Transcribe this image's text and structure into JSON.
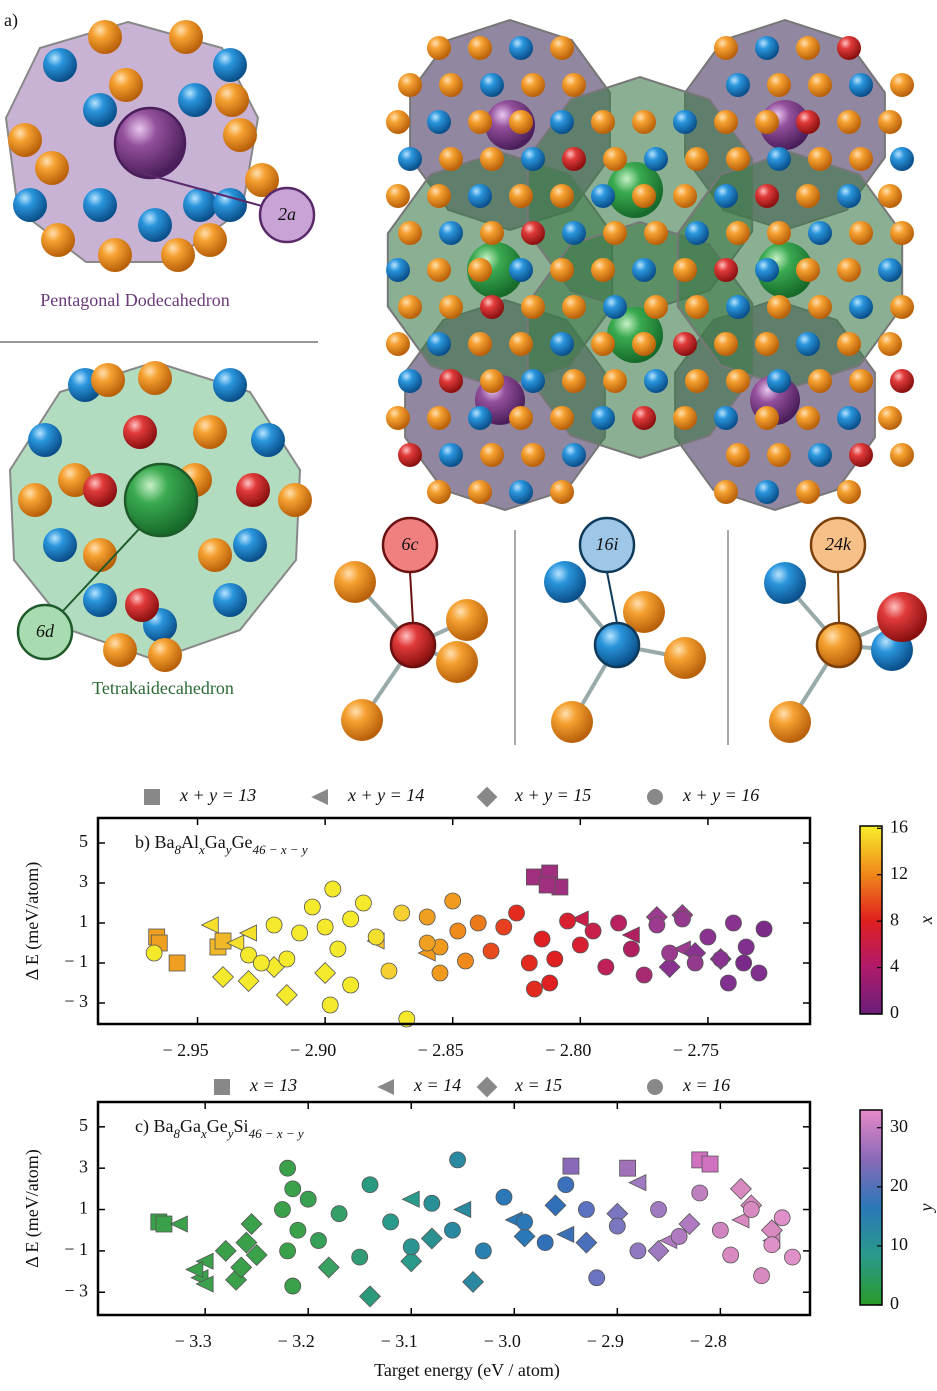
{
  "figure": {
    "panel_label": "a)",
    "dodecahedron": {
      "name": "Pentagonal Dodecahedron",
      "site": "2a"
    },
    "tetrakaidecahedron": {
      "name": "Tetrakaidecahedron",
      "site": "6d"
    },
    "sites": [
      "6c",
      "16i",
      "24k"
    ]
  },
  "chart_data": [
    {
      "type": "scatter",
      "title_parts": [
        "b) Ba",
        "8",
        "Al",
        "x",
        "Ga",
        "y",
        "Ge",
        "46 − x − y"
      ],
      "ylabel": "Δ E (meV/atom)",
      "xlim": [
        -2.989,
        -2.71
      ],
      "ylim": [
        -4.05,
        6.25
      ],
      "xticks": [
        {
          "value": -2.95,
          "label": "− 2.95"
        },
        {
          "value": -2.9,
          "label": "− 2.90"
        },
        {
          "value": -2.85,
          "label": "− 2.85"
        },
        {
          "value": -2.8,
          "label": "− 2.80"
        },
        {
          "value": -2.75,
          "label": "− 2.75"
        }
      ],
      "yticks": [
        5,
        3,
        1,
        {
          "value": -1,
          "label": "− 1"
        },
        {
          "value": -3,
          "label": "− 3"
        }
      ],
      "series": [
        {
          "name": "x + y = 13",
          "marker": "square",
          "x": [
            -2.966,
            -2.965,
            -2.958,
            -2.942,
            -2.94,
            -2.818,
            -2.812,
            -2.808,
            -2.813
          ],
          "values": [
            0.3,
            0.0,
            -1.0,
            -0.2,
            0.1,
            3.3,
            3.5,
            2.8,
            2.9
          ],
          "colors": [
            "#f0a020",
            "#f0a020",
            "#f0a020",
            "#f0b828",
            "#f0b828",
            "#a0307f",
            "#a0307f",
            "#a0307f",
            "#a0307f"
          ]
        },
        {
          "name": "x + y = 14",
          "marker": "triangle-left",
          "x": [
            -2.945,
            -2.935,
            -2.93,
            -2.88,
            -2.86,
            -2.8,
            -2.78,
            -2.76
          ],
          "values": [
            0.9,
            0.0,
            0.5,
            0.1,
            -0.5,
            1.2,
            0.4,
            -0.3
          ],
          "colors": [
            "#f5e02c",
            "#f5e02c",
            "#f5e02c",
            "#f5c030",
            "#f09a1e",
            "#c8204a",
            "#b02060",
            "#9b3a8e"
          ]
        },
        {
          "name": "x + y = 15",
          "marker": "diamond",
          "x": [
            -2.94,
            -2.93,
            -2.915,
            -2.92,
            -2.9,
            -2.77,
            -2.76,
            -2.755,
            -2.765,
            -2.745
          ],
          "values": [
            -1.7,
            -1.9,
            -2.6,
            -1.2,
            -1.5,
            1.3,
            1.4,
            -0.5,
            -1.2,
            -0.8
          ],
          "colors": [
            "#f5e92c",
            "#f5e92c",
            "#f5e92c",
            "#f5e92c",
            "#f5e92c",
            "#9b3a8e",
            "#9b3a8e",
            "#8a3290",
            "#8a3290",
            "#8a3290"
          ]
        },
        {
          "name": "x + y = 16",
          "marker": "circle",
          "x": [
            -2.967,
            -2.93,
            -2.925,
            -2.91,
            -2.905,
            -2.9,
            -2.897,
            -2.895,
            -2.89,
            -2.885,
            -2.89,
            -2.898,
            -2.88,
            -2.875,
            -2.87,
            -2.868,
            -2.915,
            -2.92,
            -2.86,
            -2.855,
            -2.85,
            -2.848,
            -2.845,
            -2.84,
            -2.855,
            -2.86,
            -2.835,
            -2.83,
            -2.825,
            -2.82,
            -2.818,
            -2.815,
            -2.81,
            -2.805,
            -2.8,
            -2.812,
            -2.795,
            -2.79,
            -2.785,
            -2.78,
            -2.775,
            -2.77,
            -2.765,
            -2.76,
            -2.755,
            -2.75,
            -2.745,
            -2.74,
            -2.735,
            -2.73,
            -2.742,
            -2.728,
            -2.736
          ],
          "values": [
            -0.5,
            -0.6,
            -1.0,
            0.5,
            1.8,
            0.8,
            2.7,
            -0.3,
            1.2,
            2.0,
            -2.1,
            -3.1,
            0.3,
            -1.4,
            1.5,
            -3.8,
            -0.8,
            0.9,
            1.3,
            -0.2,
            2.1,
            0.6,
            -0.9,
            1.0,
            -1.5,
            0.0,
            -0.4,
            0.8,
            1.5,
            -1.0,
            -2.3,
            0.2,
            -0.8,
            1.1,
            -0.1,
            -2.0,
            0.6,
            -1.2,
            1.0,
            -0.3,
            -1.6,
            0.9,
            -0.5,
            1.2,
            -1.0,
            0.3,
            -0.8,
            1.0,
            -0.2,
            -1.5,
            -2.0,
            0.7,
            -1.0
          ],
          "colors": [
            "#f5e92c",
            "#f5e92c",
            "#f5e92c",
            "#f5e92c",
            "#f5e92c",
            "#f5e92c",
            "#f5e92c",
            "#f5e92c",
            "#f5e92c",
            "#f5e92c",
            "#f5e92c",
            "#f5e92c",
            "#f5e030",
            "#f5d030",
            "#f5d030",
            "#f5e92c",
            "#f5e92c",
            "#f5e92c",
            "#f0a020",
            "#f09a1e",
            "#f09a1e",
            "#f08a1a",
            "#f08a1a",
            "#ec7a1a",
            "#f09a1e",
            "#f0a020",
            "#e84a1e",
            "#e6401e",
            "#e32a1f",
            "#e32a1f",
            "#e32a1f",
            "#e02020",
            "#e02020",
            "#d82030",
            "#d82030",
            "#e02020",
            "#c8204a",
            "#c0205a",
            "#b8205f",
            "#b02060",
            "#a82a70",
            "#9b3a8e",
            "#9b3a8e",
            "#943a8e",
            "#943a8e",
            "#8a3290",
            "#8a3290",
            "#8a3290",
            "#823090",
            "#823090",
            "#823090",
            "#7b2a8a",
            "#7b2a8a"
          ]
        }
      ],
      "colorbar": {
        "label": "x",
        "colors": [
          "#6a1f7a",
          "#b01a6a",
          "#e0201e",
          "#f08a1a",
          "#f8ee2a"
        ],
        "lim": [
          0,
          16.2
        ],
        "ticks": [
          0,
          4,
          8,
          12,
          16
        ]
      }
    },
    {
      "type": "scatter",
      "title_parts": [
        "c) Ba",
        "8",
        "Ga",
        "x",
        "Ge",
        "y",
        "Si",
        "46 − x − y"
      ],
      "ylabel": "Δ E (meV/atom)",
      "xlabel": "Target energy (eV   / atom)",
      "xlim": [
        -3.404,
        -2.713
      ],
      "ylim": [
        -4.1,
        6.2
      ],
      "xticks": [
        {
          "value": -3.3,
          "label": "− 3.3"
        },
        {
          "value": -3.2,
          "label": "− 3.2"
        },
        {
          "value": -3.1,
          "label": "− 3.1"
        },
        {
          "value": -3.0,
          "label": "− 3.0"
        },
        {
          "value": -2.9,
          "label": "− 2.9"
        },
        {
          "value": -2.8,
          "label": "− 2.8"
        }
      ],
      "yticks": [
        5,
        3,
        1,
        {
          "value": -1,
          "label": "− 1"
        },
        {
          "value": -3,
          "label": "− 3"
        }
      ],
      "series": [
        {
          "name": "x = 13",
          "marker": "square",
          "x": [
            -3.345,
            -3.34,
            -2.945,
            -2.89,
            -2.82,
            -2.81
          ],
          "values": [
            0.4,
            0.3,
            3.1,
            3.0,
            3.4,
            3.2
          ],
          "colors": [
            "#3aa04a",
            "#3aa04a",
            "#8a6ab8",
            "#a070b8",
            "#d070c0",
            "#d070c0"
          ]
        },
        {
          "name": "x = 14",
          "marker": "triangle-left",
          "x": [
            -3.325,
            -3.3,
            -3.305,
            -3.31,
            -3.3,
            -3.1,
            -3.05,
            -3.0,
            -2.95,
            -2.88,
            -2.85,
            -2.78,
            -2.75
          ],
          "values": [
            0.3,
            -1.5,
            -2.3,
            -1.9,
            -2.6,
            1.5,
            1.0,
            0.5,
            -0.2,
            2.3,
            -0.5,
            0.5,
            -0.5
          ],
          "colors": [
            "#3aa04a",
            "#3aa04a",
            "#3aa04a",
            "#3aa04a",
            "#3aa04a",
            "#2a9a8a",
            "#2a8aa0",
            "#2a78b8",
            "#3a70b8",
            "#a07ac0",
            "#b07ac0",
            "#d889c0",
            "#d889c0"
          ]
        },
        {
          "name": "x = 15",
          "marker": "diamond",
          "x": [
            -3.28,
            -3.27,
            -3.265,
            -3.26,
            -3.255,
            -3.25,
            -3.18,
            -3.14,
            -3.1,
            -3.08,
            -3.04,
            -2.99,
            -2.96,
            -2.93,
            -2.9,
            -2.86,
            -2.83,
            -2.78,
            -2.77,
            -2.75
          ],
          "values": [
            -1.0,
            -2.4,
            -1.8,
            -0.6,
            0.3,
            -1.2,
            -1.8,
            -3.2,
            -1.5,
            -0.4,
            -2.5,
            -0.3,
            1.2,
            -0.6,
            0.8,
            -1.0,
            0.3,
            2.0,
            1.2,
            0.0
          ],
          "colors": [
            "#3aa04a",
            "#3aa04a",
            "#3aa04a",
            "#3aa04a",
            "#3aa04a",
            "#3aa04a",
            "#38a060",
            "#2a9a7a",
            "#2a9a8a",
            "#2a9090",
            "#2a88a0",
            "#2a78b8",
            "#2f70b8",
            "#4a70bc",
            "#7a76c0",
            "#a07ac0",
            "#b07ac0",
            "#d889c0",
            "#d889c0",
            "#d889c0"
          ]
        },
        {
          "name": "x = 16",
          "marker": "circle",
          "x": [
            -3.22,
            -3.215,
            -3.225,
            -3.21,
            -3.22,
            -3.215,
            -3.2,
            -3.19,
            -3.17,
            -3.15,
            -3.14,
            -3.12,
            -3.1,
            -3.08,
            -3.055,
            -3.06,
            -3.03,
            -3.01,
            -2.99,
            -2.97,
            -2.95,
            -2.93,
            -2.92,
            -2.9,
            -2.88,
            -2.86,
            -2.84,
            -2.82,
            -2.8,
            -2.79,
            -2.77,
            -2.75,
            -2.74,
            -2.73,
            -2.76
          ],
          "values": [
            3.0,
            2.0,
            1.0,
            0.0,
            -1.0,
            -2.7,
            1.5,
            -0.5,
            0.8,
            -1.3,
            2.2,
            0.4,
            -0.8,
            1.3,
            3.4,
            0.0,
            -1.0,
            1.6,
            0.4,
            -0.6,
            2.2,
            1.0,
            -2.3,
            0.2,
            -1.0,
            1.0,
            -0.3,
            1.8,
            0.0,
            -1.2,
            1.0,
            -0.7,
            0.6,
            -1.3,
            -2.2
          ],
          "colors": [
            "#3aa04a",
            "#3aa04a",
            "#3aa04a",
            "#3aa04a",
            "#3aa04a",
            "#3aa04a",
            "#38a050",
            "#36a058",
            "#32a068",
            "#2f9c74",
            "#2a9a80",
            "#2a9a8a",
            "#2a9590",
            "#2a9098",
            "#2a88a0",
            "#2a88a0",
            "#2a80b0",
            "#2a78b8",
            "#2a78b8",
            "#2f70b8",
            "#3a70bc",
            "#5a72bf",
            "#6a74c0",
            "#7a76c0",
            "#9078c0",
            "#a07ac0",
            "#b07ac0",
            "#c080c0",
            "#d085c0",
            "#d889c0",
            "#d889c0",
            "#e090c8",
            "#e090c8",
            "#e090c8",
            "#d889c0"
          ]
        }
      ],
      "colorbar": {
        "label": "y",
        "colors": [
          "#2a9a2a",
          "#2a9a8a",
          "#2a78b8",
          "#8a6ab8",
          "#e888c8"
        ],
        "lim": [
          0,
          33
        ],
        "ticks": [
          0,
          10,
          20,
          30
        ]
      }
    }
  ]
}
